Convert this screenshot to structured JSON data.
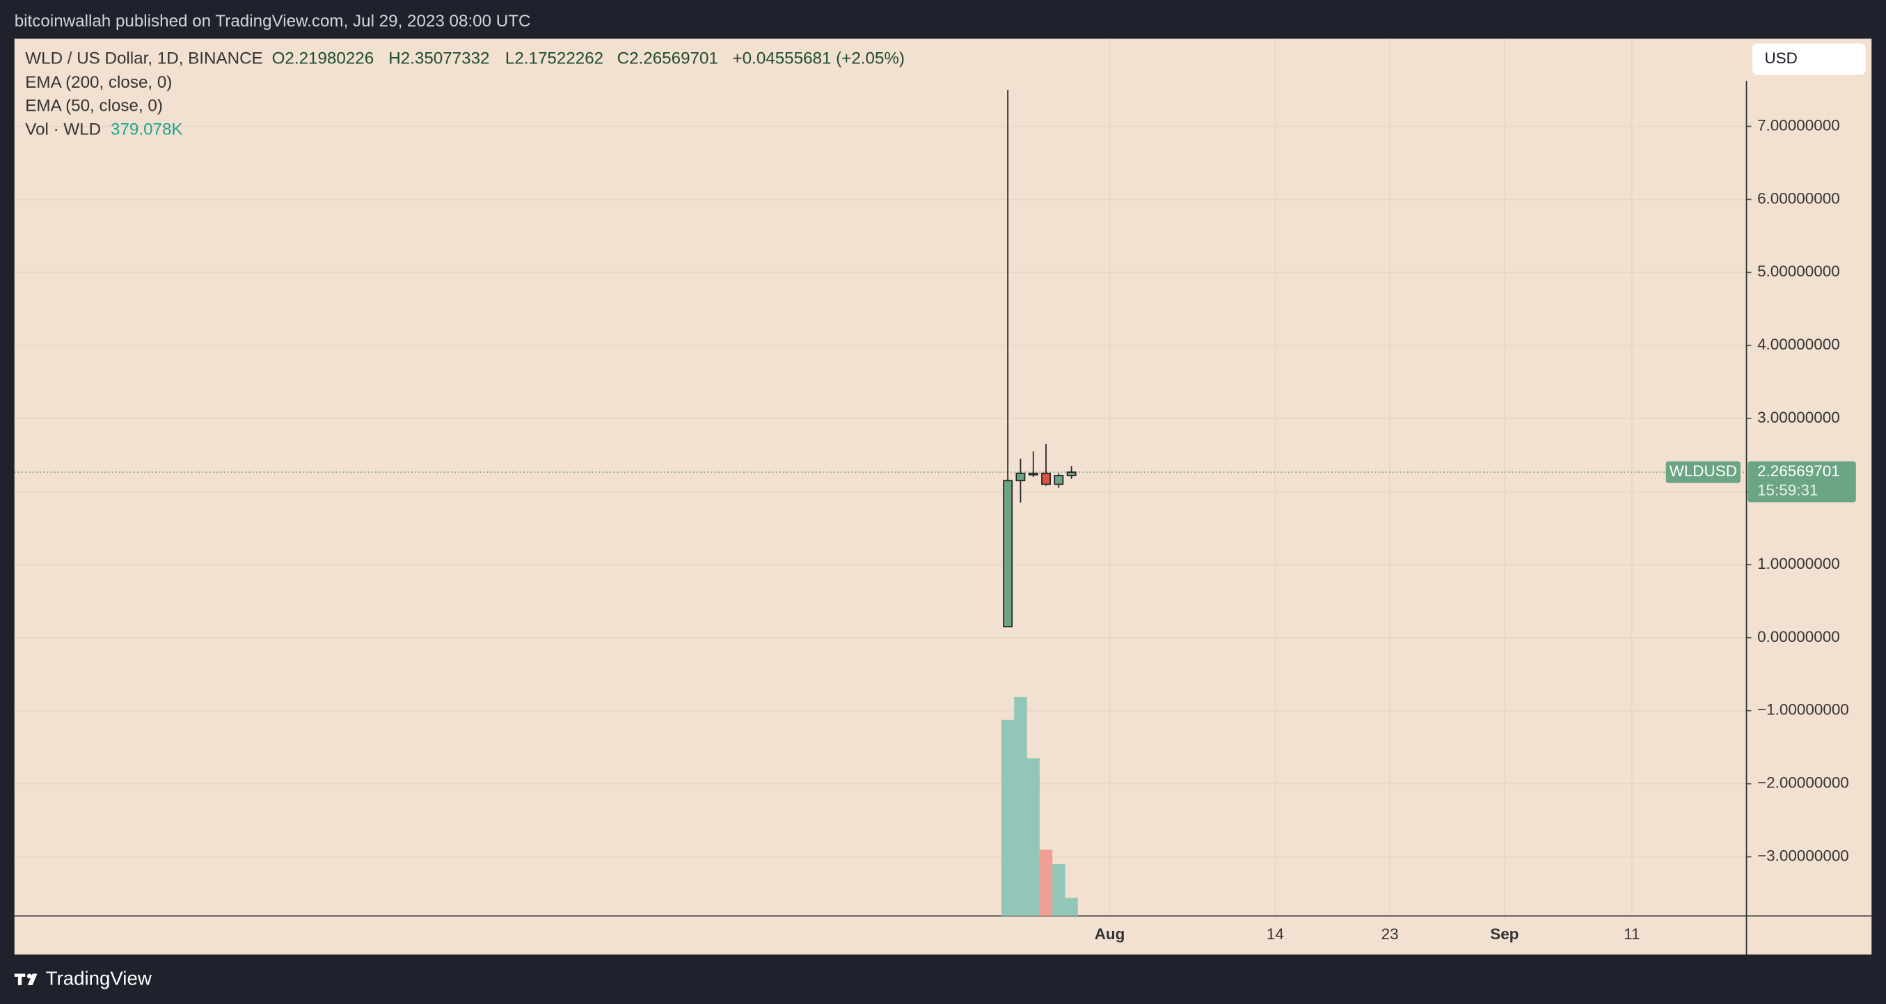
{
  "header": {
    "byline": "bitcoinwallah published on TradingView.com, Jul 29, 2023 08:00 UTC",
    "brand": "TradingView"
  },
  "chart_data": {
    "type": "candlestick",
    "title": "WLD / US Dollar, 1D, BINANCE",
    "legend_ohlc": [
      "O2.21980226",
      "H2.35077332",
      "L2.17522262",
      "C2.26569701",
      "+0.04555681 (+2.05%)"
    ],
    "indicators": [
      "EMA (200, close, 0)",
      "EMA (50, close, 0)"
    ],
    "volume_name": "Vol · WLD",
    "volume_last_label": "379.078K",
    "currency": "USD",
    "symbol_tag": "WLDUSD",
    "countdown": "15:59:31",
    "x": [
      "2023-07-24",
      "2023-07-25",
      "2023-07-26",
      "2023-07-27",
      "2023-07-28",
      "2023-07-29"
    ],
    "open": [
      0.15,
      2.15,
      2.23,
      2.25,
      2.1,
      2.21980226
    ],
    "high": [
      7.5,
      2.45,
      2.55,
      2.65,
      2.25,
      2.35077332
    ],
    "low": [
      0.15,
      1.85,
      2.2,
      2.08,
      2.05,
      2.17522262
    ],
    "close": [
      2.15,
      2.25,
      2.25,
      2.1,
      2.22,
      2.26569701
    ],
    "volume": [
      4120000,
      4600000,
      3310000,
      1390000,
      1090000,
      379078
    ],
    "up_color": "#6ba583",
    "down_color": "#d75442",
    "volume_up_color": "#92c6b8",
    "volume_down_color": "#ef9f93",
    "xlim": [
      "2023-05-07",
      "2023-09-20"
    ],
    "xticks": [
      {
        "value": "2023-08-01",
        "label": "Aug"
      },
      {
        "value": "2023-08-14",
        "label": "14"
      },
      {
        "value": "2023-08-23",
        "label": "23"
      },
      {
        "value": "2023-09-01",
        "label": "Sep"
      },
      {
        "value": "2023-09-11",
        "label": "11"
      }
    ],
    "ylim": [
      -3.81,
      8.2
    ],
    "yticks": [
      {
        "value": -3,
        "label": "−3.00000000"
      },
      {
        "value": -2,
        "label": "−2.00000000"
      },
      {
        "value": -1,
        "label": "−1.00000000"
      },
      {
        "value": 0,
        "label": "0.00000000"
      },
      {
        "value": 1,
        "label": "1.00000000"
      },
      {
        "value": 2,
        "label": "2.00000000"
      },
      {
        "value": 3,
        "label": "3.00000000"
      },
      {
        "value": 4,
        "label": "4.00000000"
      },
      {
        "value": 5,
        "label": "5.00000000"
      },
      {
        "value": 6,
        "label": "6.00000000"
      },
      {
        "value": 7,
        "label": "7.00000000"
      }
    ],
    "grid": true
  }
}
